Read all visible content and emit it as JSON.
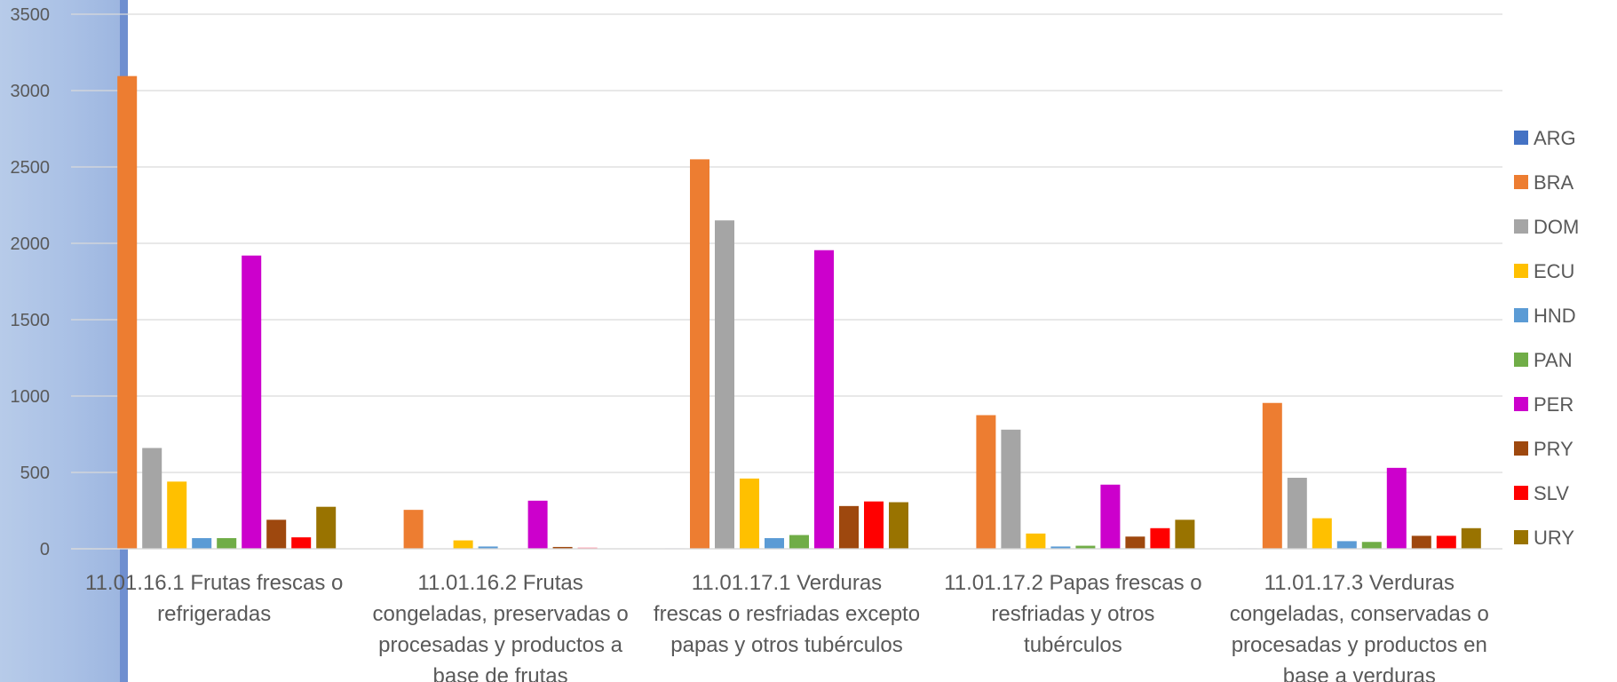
{
  "chart_data": {
    "type": "bar",
    "title": "",
    "xlabel": "",
    "ylabel": "",
    "ylim": [
      0,
      3500
    ],
    "yticks": [
      0,
      500,
      1000,
      1500,
      2000,
      2500,
      3000,
      3500
    ],
    "grid": true,
    "legend_position": "right",
    "categories": [
      [
        "11.01.16.1  Frutas frescas o",
        "refrigeradas"
      ],
      [
        "11.01.16.2 Frutas",
        "congeladas, preservadas o",
        "procesadas y productos a",
        "base de frutas"
      ],
      [
        "11.01.17.1  Verduras",
        "frescas o resfriadas excepto",
        "papas y otros tubérculos"
      ],
      [
        "11.01.17.2  Papas frescas o",
        "resfriadas y otros",
        "tubérculos"
      ],
      [
        "11.01.17.3  Verduras",
        "congeladas, conservadas o",
        "procesadas y productos en",
        "base a verduras"
      ]
    ],
    "series": [
      {
        "name": "ARG",
        "color": "#4472C4",
        "values": [
          3,
          0,
          3,
          0,
          3
        ]
      },
      {
        "name": "BRA",
        "color": "#ED7D31",
        "values": [
          3095,
          255,
          2550,
          875,
          955
        ]
      },
      {
        "name": "DOM",
        "color": "#A5A5A5",
        "values": [
          660,
          0,
          2150,
          780,
          465
        ]
      },
      {
        "name": "ECU",
        "color": "#FFC000",
        "values": [
          440,
          55,
          460,
          100,
          200
        ]
      },
      {
        "name": "HND",
        "color": "#5B9BD5",
        "values": [
          70,
          15,
          70,
          15,
          50
        ]
      },
      {
        "name": "PAN",
        "color": "#70AD47",
        "values": [
          70,
          0,
          90,
          20,
          45
        ]
      },
      {
        "name": "PER",
        "color": "#CC00CC",
        "values": [
          1920,
          315,
          1955,
          420,
          530
        ]
      },
      {
        "name": "PRY",
        "color": "#9E480E",
        "values": [
          190,
          12,
          280,
          80,
          85
        ]
      },
      {
        "name": "SLV",
        "color": "#FF0000",
        "values": [
          75,
          0,
          310,
          135,
          85
        ]
      },
      {
        "name": "URY",
        "color": "#997300",
        "values": [
          275,
          0,
          305,
          190,
          135
        ]
      }
    ],
    "extra_marks": [
      {
        "category_index": 1,
        "after_series": "PRY",
        "color": "#FF8FA0",
        "value": 8
      }
    ]
  }
}
